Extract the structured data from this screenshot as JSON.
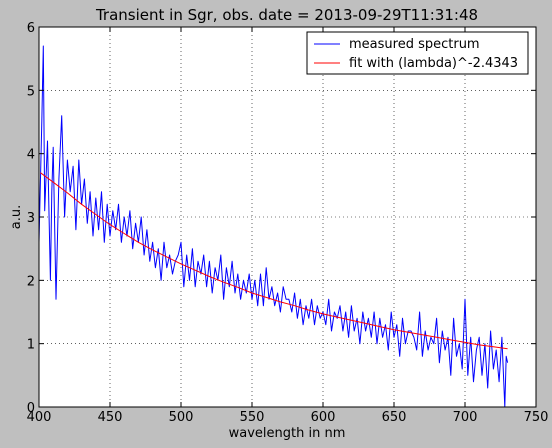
{
  "chart_data": {
    "type": "line",
    "title": "Transient in Sgr, obs. date = 2013-09-29T11:31:48",
    "xlabel": "wavelength in nm",
    "ylabel": "a.u.",
    "xlim": [
      400,
      750
    ],
    "ylim": [
      0,
      6
    ],
    "xticks": [
      "400",
      "450",
      "500",
      "550",
      "600",
      "650",
      "700",
      "750"
    ],
    "yticks": [
      "0",
      "1",
      "2",
      "3",
      "4",
      "5",
      "6"
    ],
    "grid": true,
    "legend_position": "top-right",
    "colors": {
      "background": "#bfbfbf",
      "axes_face": "#ffffff",
      "measured": "#0000ff",
      "fit": "#ff0000"
    },
    "series": [
      {
        "name": "measured spectrum",
        "color": "#0000ff",
        "x": [
          400,
          402,
          403,
          404,
          406,
          408,
          409,
          410,
          412,
          414,
          416,
          418,
          420,
          422,
          424,
          426,
          428,
          430,
          432,
          434,
          436,
          438,
          440,
          442,
          444,
          446,
          448,
          450,
          452,
          454,
          456,
          458,
          460,
          462,
          464,
          466,
          468,
          470,
          472,
          474,
          476,
          478,
          480,
          482,
          484,
          486,
          488,
          490,
          492,
          494,
          496,
          498,
          500,
          502,
          504,
          506,
          508,
          510,
          512,
          514,
          516,
          518,
          520,
          522,
          524,
          526,
          528,
          530,
          532,
          534,
          536,
          538,
          540,
          542,
          544,
          546,
          548,
          550,
          552,
          554,
          556,
          558,
          560,
          562,
          564,
          566,
          568,
          570,
          572,
          574,
          576,
          578,
          580,
          582,
          584,
          586,
          588,
          590,
          592,
          594,
          596,
          598,
          600,
          602,
          604,
          606,
          608,
          610,
          612,
          614,
          616,
          618,
          620,
          622,
          624,
          626,
          628,
          630,
          632,
          634,
          636,
          638,
          640,
          642,
          644,
          646,
          648,
          650,
          652,
          654,
          656,
          658,
          660,
          662,
          664,
          666,
          668,
          670,
          672,
          674,
          676,
          678,
          680,
          682,
          684,
          686,
          688,
          690,
          692,
          694,
          696,
          698,
          700,
          702,
          704,
          706,
          708,
          710,
          712,
          714,
          716,
          718,
          720,
          722,
          724,
          726,
          728,
          729,
          730
        ],
        "y": [
          2.6,
          4.5,
          5.7,
          3.1,
          4.2,
          2.0,
          3.4,
          4.1,
          1.7,
          3.6,
          4.6,
          3.0,
          3.9,
          3.4,
          3.8,
          2.8,
          3.9,
          3.2,
          3.6,
          2.9,
          3.4,
          2.7,
          3.3,
          2.8,
          3.4,
          2.6,
          3.2,
          2.7,
          3.1,
          2.8,
          3.2,
          2.6,
          3.0,
          2.7,
          3.1,
          2.5,
          2.9,
          2.6,
          3.0,
          2.4,
          2.8,
          2.3,
          2.6,
          2.2,
          2.5,
          2.0,
          2.6,
          2.2,
          2.4,
          2.1,
          2.3,
          2.4,
          2.6,
          1.9,
          2.4,
          2.0,
          2.5,
          1.9,
          2.3,
          2.1,
          2.4,
          1.9,
          2.3,
          1.8,
          2.2,
          2.0,
          2.4,
          1.7,
          2.2,
          1.9,
          2.3,
          1.8,
          2.1,
          1.7,
          2.0,
          1.8,
          2.1,
          1.7,
          2.0,
          1.6,
          2.1,
          1.6,
          2.2,
          1.7,
          1.9,
          1.6,
          1.8,
          1.5,
          1.9,
          1.7,
          1.7,
          1.5,
          1.8,
          1.4,
          1.7,
          1.3,
          1.6,
          1.4,
          1.7,
          1.3,
          1.6,
          1.4,
          1.5,
          1.3,
          1.7,
          1.2,
          1.5,
          1.4,
          1.6,
          1.2,
          1.5,
          1.1,
          1.6,
          1.2,
          1.4,
          1.0,
          1.5,
          1.2,
          1.4,
          1.1,
          1.5,
          1.0,
          1.4,
          1.1,
          1.3,
          0.9,
          1.5,
          1.1,
          1.3,
          0.8,
          1.4,
          1.0,
          1.2,
          1.2,
          1.1,
          0.9,
          1.5,
          0.8,
          1.2,
          0.9,
          1.1,
          1.0,
          1.4,
          0.7,
          1.2,
          0.9,
          1.1,
          0.5,
          1.4,
          0.8,
          1.0,
          0.6,
          1.7,
          0.5,
          1.1,
          0.4,
          0.9,
          1.1,
          0.5,
          1.0,
          0.3,
          1.2,
          0.6,
          0.9,
          0.4,
          1.1,
          0.0,
          0.8,
          0.7
        ]
      },
      {
        "name": "fit with (lambda)^-2.4343",
        "color": "#ff0000",
        "x": [
          401,
          410,
          420,
          430,
          440,
          450,
          460,
          470,
          480,
          490,
          500,
          510,
          520,
          530,
          540,
          550,
          560,
          570,
          580,
          590,
          600,
          610,
          620,
          630,
          640,
          650,
          660,
          670,
          680,
          690,
          700,
          710,
          720,
          730
        ],
        "y": [
          3.7,
          3.55,
          3.38,
          3.2,
          3.04,
          2.88,
          2.74,
          2.6,
          2.48,
          2.37,
          2.26,
          2.16,
          2.06,
          1.97,
          1.89,
          1.8,
          1.73,
          1.66,
          1.6,
          1.53,
          1.47,
          1.42,
          1.37,
          1.32,
          1.27,
          1.22,
          1.18,
          1.14,
          1.1,
          1.06,
          1.02,
          0.98,
          0.95,
          0.92
        ]
      }
    ]
  }
}
